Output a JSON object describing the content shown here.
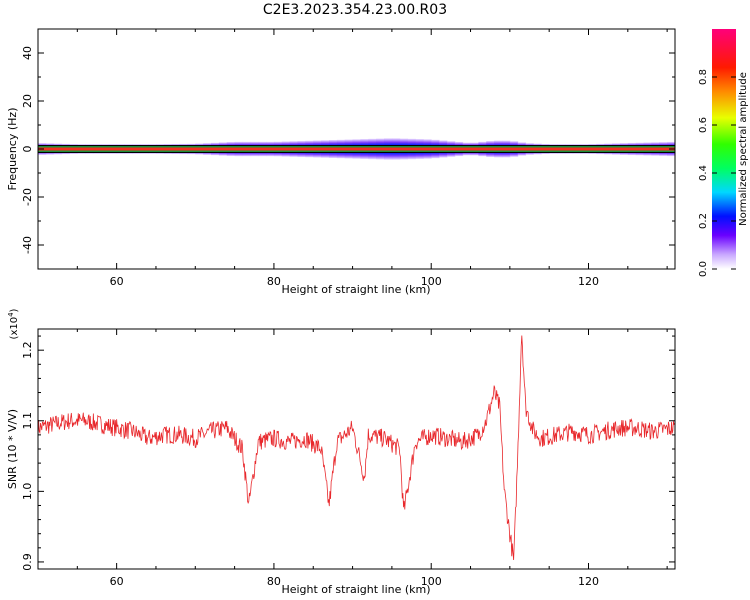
{
  "title": "C2E3.2023.354.23.00.R03",
  "chart_data": [
    {
      "type": "heatmap",
      "title": "",
      "xlabel": "Height of straight line (km)",
      "ylabel": "Frequency (Hz)",
      "xlim": [
        50,
        131
      ],
      "ylim": [
        -50,
        50
      ],
      "xticks": [
        60,
        80,
        100,
        120
      ],
      "yticks": [
        -40,
        -20,
        0,
        20,
        40
      ],
      "colorbar": {
        "label": "Normalized spectral amplitude",
        "range": [
          0.0,
          1.0
        ],
        "ticks": [
          "0.0",
          "0.2",
          "0.4",
          "0.6",
          "0.8"
        ],
        "colormap": "rainbow (white-violet-blue-cyan-green-yellow-red-magenta)"
      },
      "band_center_hz": 0,
      "band_halfwidth_profile": {
        "x": [
          50,
          55,
          60,
          65,
          70,
          75,
          80,
          85,
          90,
          95,
          100,
          105,
          108,
          110,
          112,
          115,
          120,
          125,
          131
        ],
        "halfwidth_hz": [
          2.5,
          2.0,
          2.0,
          2.0,
          2.2,
          3.0,
          3.0,
          3.5,
          4.0,
          4.5,
          4.0,
          2.5,
          3.5,
          3.5,
          2.5,
          2.0,
          2.0,
          2.5,
          3.0
        ]
      }
    },
    {
      "type": "line",
      "title": "",
      "xlabel": "Height of straight line (km)",
      "ylabel": "SNR (10 * V/V)",
      "y_multiplier": "(x10",
      "y_multiplier_exp": "4",
      "y_multiplier_close": ")",
      "xlim": [
        50,
        131
      ],
      "ylim": [
        0.89,
        1.23
      ],
      "xticks": [
        60,
        80,
        100,
        120
      ],
      "yticks": [
        "0.9",
        "1.0",
        "1.1",
        "1.2"
      ],
      "color": "#e8272b",
      "series": [
        {
          "x": [
            50,
            52,
            54,
            56,
            58,
            60,
            62,
            64,
            66,
            68,
            70,
            72,
            74,
            76,
            76.8,
            78,
            80,
            82,
            84,
            86,
            87,
            88,
            90,
            91.5,
            92,
            94,
            96,
            96.5,
            98,
            100,
            102,
            104,
            106,
            107,
            108,
            108.7,
            109.3,
            110,
            110.5,
            111,
            111.5,
            112,
            113,
            114,
            116,
            118,
            120,
            122,
            124,
            126,
            128,
            131
          ],
          "y": [
            1.09,
            1.095,
            1.1,
            1.1,
            1.095,
            1.09,
            1.085,
            1.075,
            1.08,
            1.08,
            1.075,
            1.085,
            1.09,
            1.06,
            0.98,
            1.07,
            1.075,
            1.07,
            1.075,
            1.06,
            0.98,
            1.07,
            1.09,
            1.02,
            1.08,
            1.075,
            1.06,
            0.97,
            1.07,
            1.08,
            1.075,
            1.07,
            1.08,
            1.1,
            1.14,
            1.12,
            1.0,
            0.94,
            0.9,
            1.05,
            1.23,
            1.12,
            1.085,
            1.075,
            1.08,
            1.085,
            1.08,
            1.085,
            1.09,
            1.09,
            1.085,
            1.09
          ]
        }
      ]
    }
  ]
}
